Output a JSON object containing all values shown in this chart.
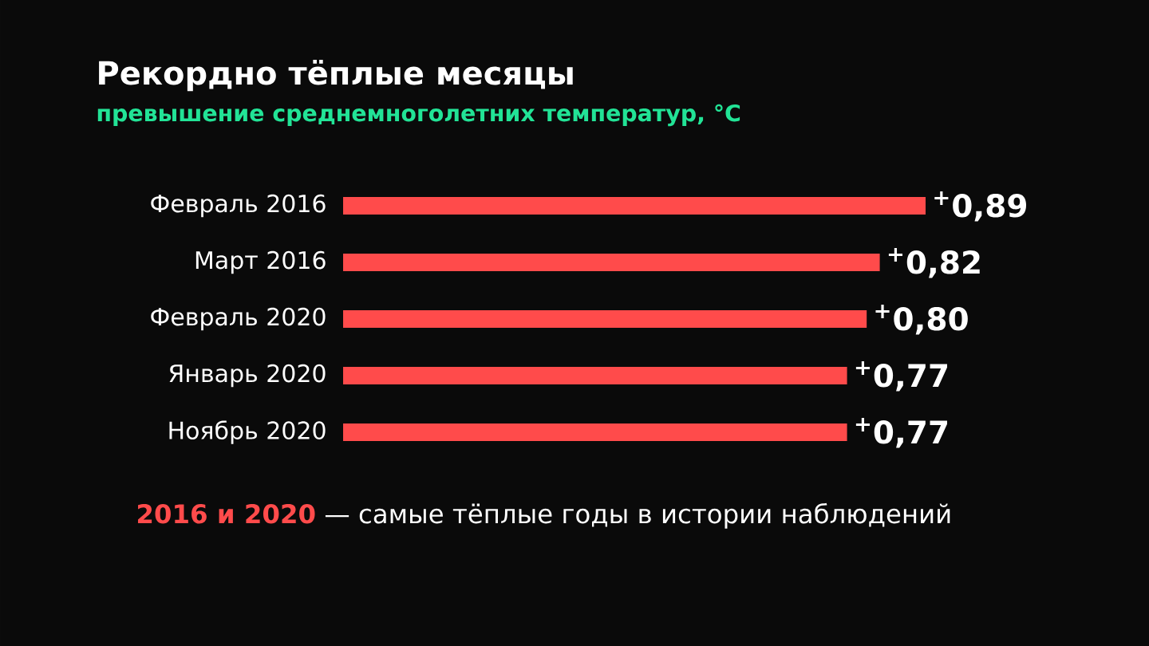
{
  "chart_data": {
    "type": "bar",
    "orientation": "horizontal",
    "title": "Рекордно тёплые месяцы",
    "subtitle": "превышение среднемноголетних температур, °C",
    "categories": [
      "Февраль 2016",
      "Март 2016",
      "Февраль 2020",
      "Январь 2020",
      "Ноябрь 2020"
    ],
    "values": [
      0.89,
      0.82,
      0.8,
      0.77,
      0.77
    ],
    "color": "#ff4b4b",
    "value_labels": [
      "$^{+}$0,89",
      "$^{+}$0,82",
      "$^{+}$0,80",
      "$^{+}$0,77",
      "$^{+}$0,77"
    ],
    "annotations": [
      "**2016 и 2020** — самые тёплые годы в истории наблюдений"
    ]
  }
}
